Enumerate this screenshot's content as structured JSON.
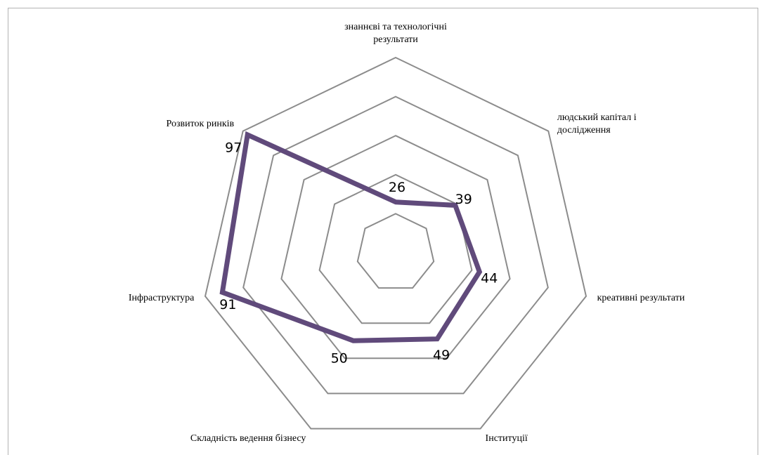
{
  "chart_data": {
    "type": "radar",
    "categories": [
      "знаннєві та технологічні результати",
      "людський капітал і дослідження",
      "креативні результати",
      "Інституції",
      "Складність ведення бізнесу",
      "Інфраструктура",
      "Розвиток ринків"
    ],
    "values": [
      26,
      39,
      44,
      49,
      50,
      91,
      97
    ],
    "color": "#604a7b",
    "grid_color": "#8c8c8c",
    "ylim": [
      0,
      100
    ],
    "yticks": [
      20,
      40,
      60,
      80,
      100
    ],
    "grid": true
  }
}
